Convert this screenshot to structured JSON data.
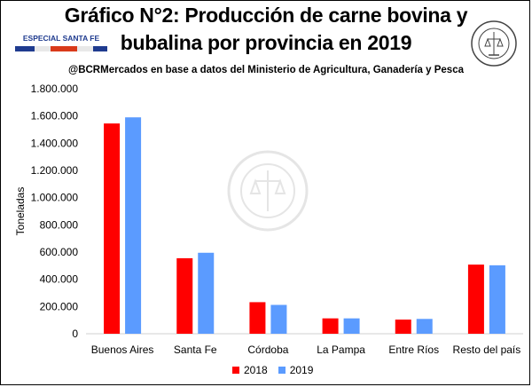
{
  "header": {
    "title": "Gráfico N°2: Producción de carne bovina y bubalina por provincia en 2019",
    "subtitle": "@BCRMercados  en base a datos del Ministerio de Agricultura,  Ganadería  y Pesca",
    "badge_label": "ESPECIAL SANTA FE"
  },
  "colors": {
    "series_2018": "#ff0000",
    "series_2019": "#5b9bff",
    "badge_text": "#1f3b8f",
    "badge_stripe": [
      "#1f3b8f",
      "#e8e8e8",
      "#d93a1a",
      "#e8e8e8",
      "#1f3b8f"
    ]
  },
  "chart_data": {
    "type": "bar",
    "title": "Gráfico N°2: Producción de carne bovina y bubalina por provincia en 2019",
    "xlabel": "",
    "ylabel": "Toneladas",
    "categories": [
      "Buenos Aires",
      "Santa Fe",
      "Córdoba",
      "La Pampa",
      "Entre Ríos",
      "Resto del país"
    ],
    "series": [
      {
        "name": "2018",
        "values": [
          1545000,
          555000,
          232000,
          113000,
          104000,
          508000
        ]
      },
      {
        "name": "2019",
        "values": [
          1590000,
          595000,
          212000,
          113000,
          109000,
          503000
        ]
      }
    ],
    "ylim": [
      0,
      1800000
    ],
    "yticks": [
      0,
      200000,
      400000,
      600000,
      800000,
      1000000,
      1200000,
      1400000,
      1600000,
      1800000
    ],
    "ytick_labels": [
      "0",
      "200.000",
      "400.000",
      "600.000",
      "800.000",
      "1.000.000",
      "1.200.000",
      "1.400.000",
      "1.600.000",
      "1.800.000"
    ],
    "grid": false,
    "legend_position": "bottom"
  }
}
